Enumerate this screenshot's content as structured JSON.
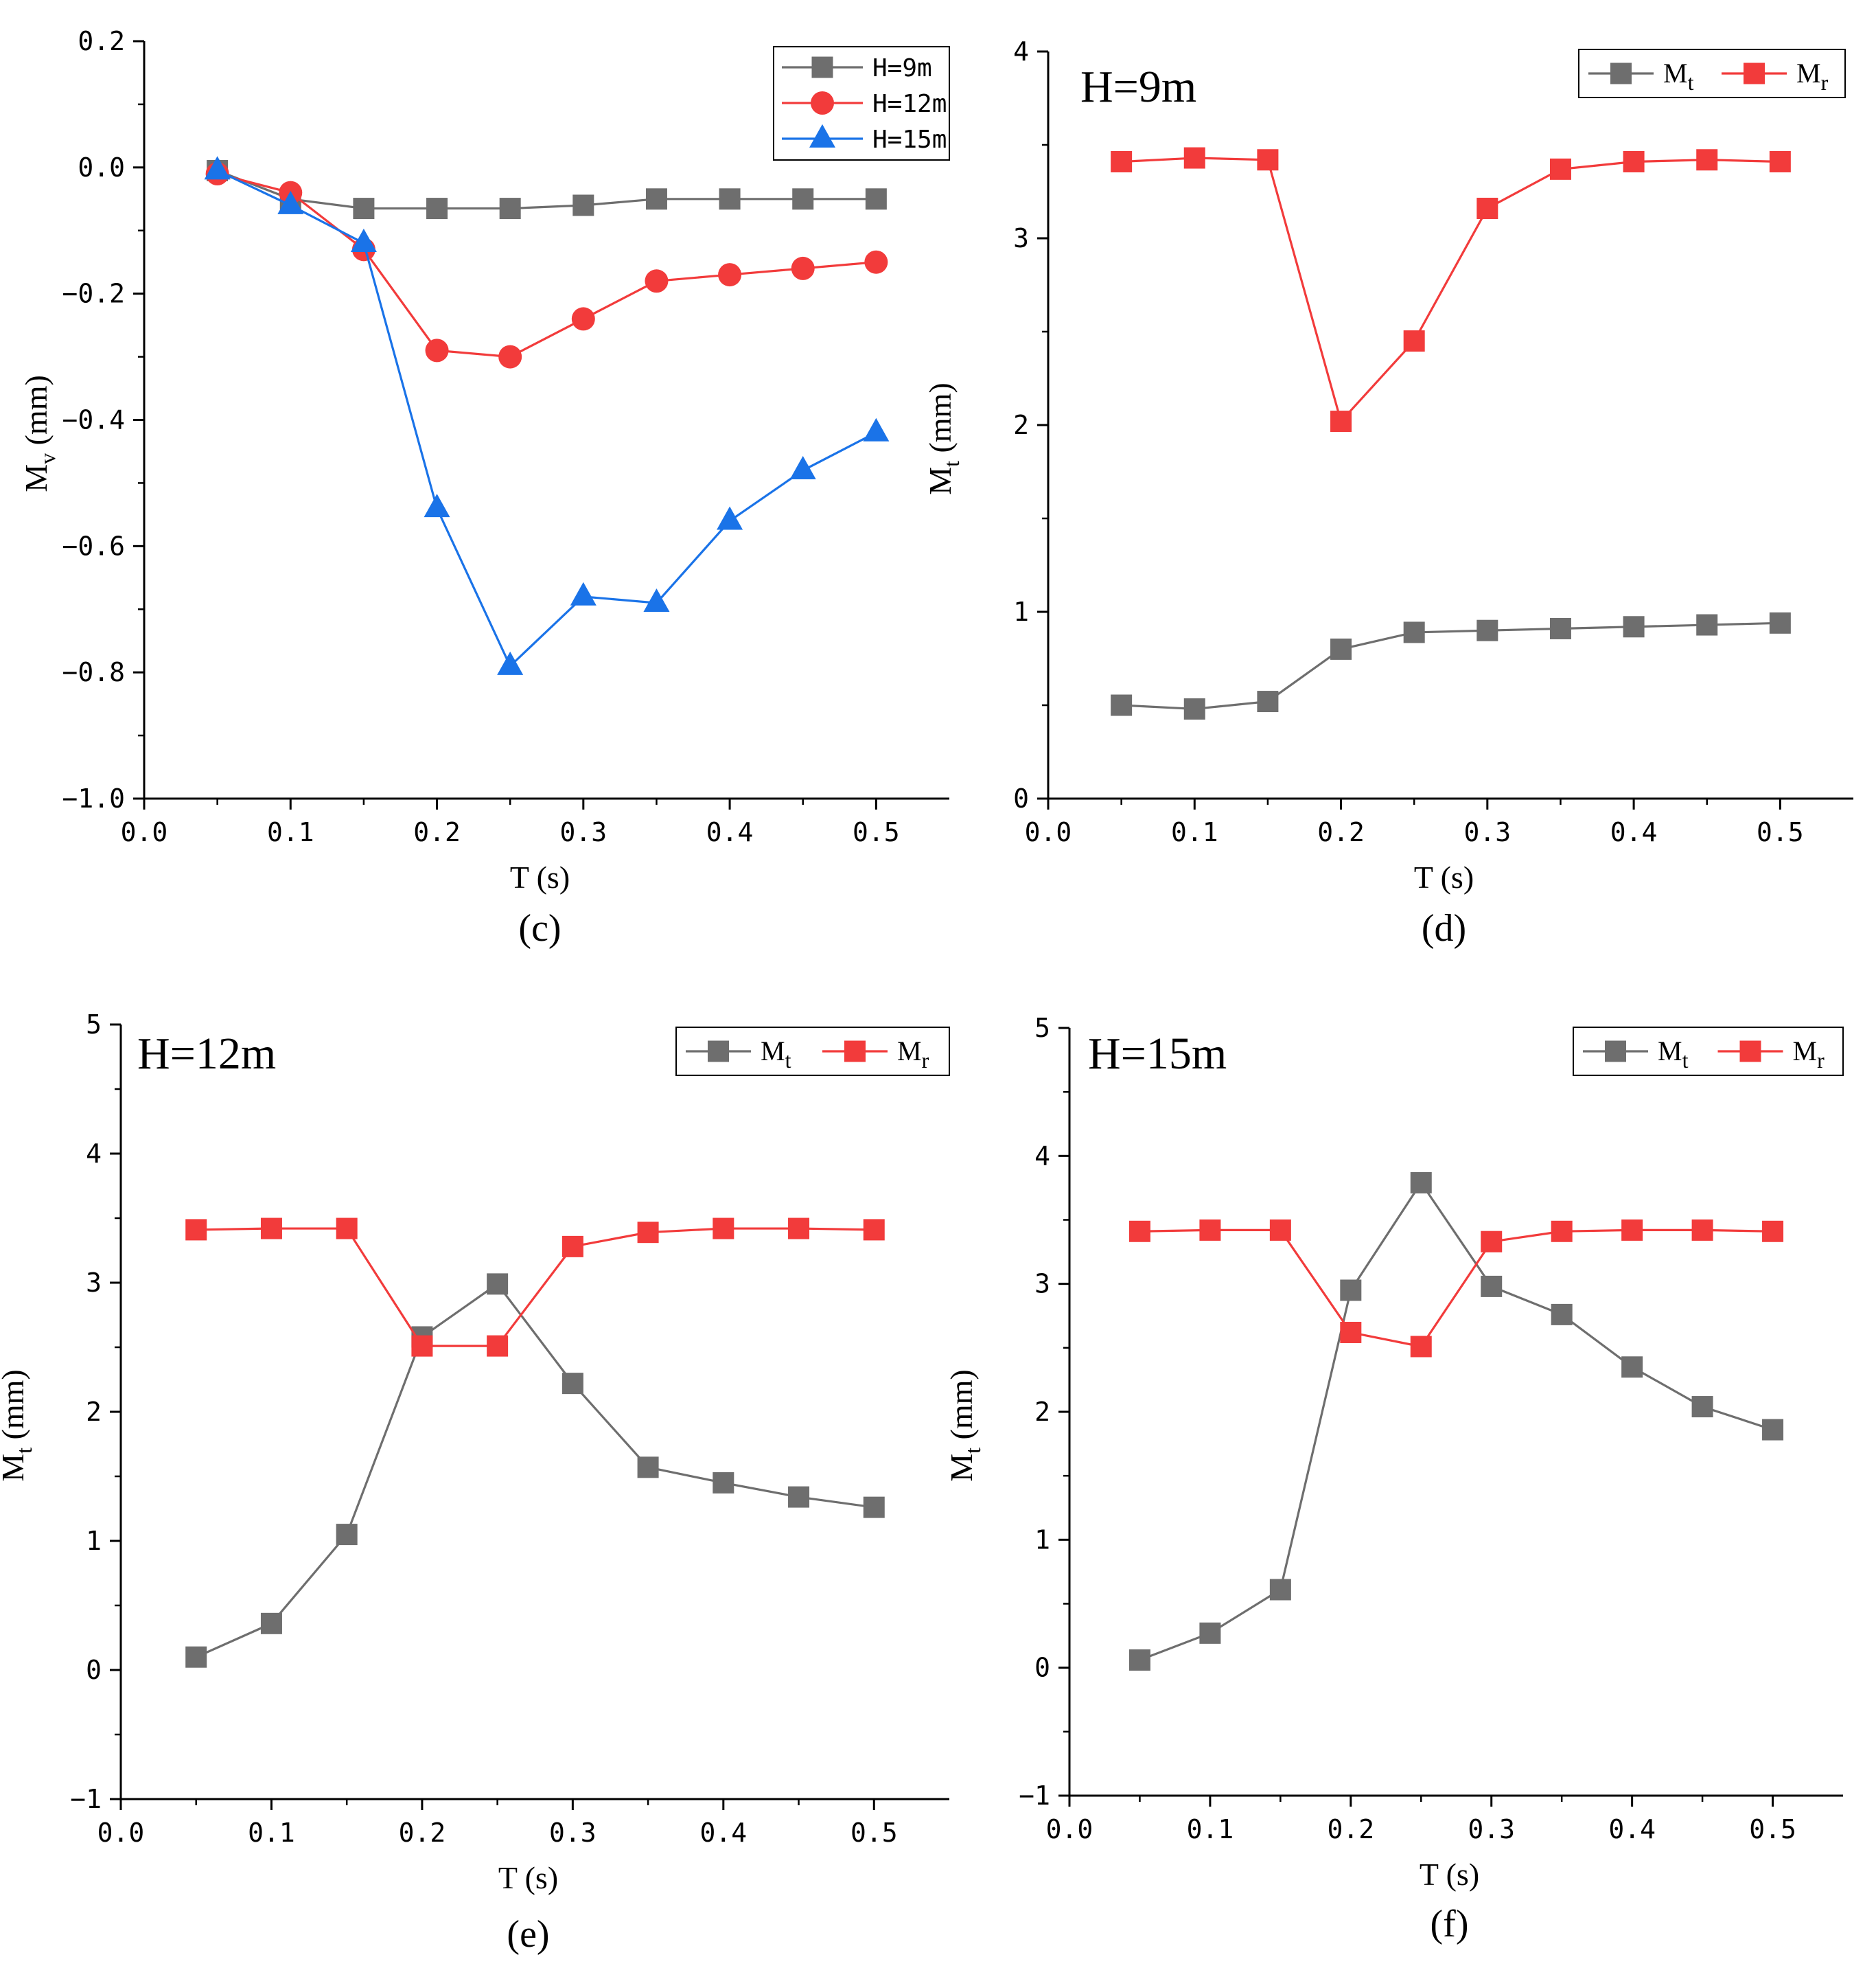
{
  "chart_data": [
    {
      "id": "c",
      "type": "line",
      "caption": "(c)",
      "xlabel": "T (s)",
      "ylabel": {
        "main": "M",
        "sub": "v",
        "unit": " (mm)"
      },
      "xlim": [
        0,
        0.55
      ],
      "ylim": [
        -1.0,
        0.2
      ],
      "xticks": [
        0.0,
        0.1,
        0.2,
        0.3,
        0.4,
        0.5
      ],
      "xtick_labels": [
        "0.0",
        "0.1",
        "0.2",
        "0.3",
        "0.4",
        "0.5"
      ],
      "yticks": [
        0.2,
        0.0,
        -0.2,
        -0.4,
        -0.6,
        -0.8,
        -1.0
      ],
      "ytick_labels": [
        "0.2",
        "0.0",
        "−0.2",
        "−0.4",
        "−0.6",
        "−0.8",
        "−1.0"
      ],
      "legend_position": "top-right",
      "x": [
        0.05,
        0.1,
        0.15,
        0.2,
        0.25,
        0.3,
        0.35,
        0.4,
        0.45,
        0.5
      ],
      "series": [
        {
          "name": "H=9m",
          "color": "#6e6e6e",
          "marker": "square",
          "values": [
            -0.005,
            -0.05,
            -0.065,
            -0.065,
            -0.065,
            -0.06,
            -0.05,
            -0.05,
            -0.05,
            -0.05
          ]
        },
        {
          "name": "H=12m",
          "color": "#f23b3b",
          "marker": "circle",
          "values": [
            -0.01,
            -0.04,
            -0.13,
            -0.29,
            -0.3,
            -0.24,
            -0.18,
            -0.17,
            -0.16,
            -0.15
          ]
        },
        {
          "name": "H=15m",
          "color": "#1a73e8",
          "marker": "triangle",
          "values": [
            -0.005,
            -0.06,
            -0.12,
            -0.54,
            -0.79,
            -0.68,
            -0.69,
            -0.56,
            -0.48,
            -0.42
          ]
        }
      ]
    },
    {
      "id": "d",
      "type": "line",
      "caption": "(d)",
      "annotation": "H=9m",
      "xlabel": "T (s)",
      "ylabel": {
        "main": "M",
        "sub": "t",
        "unit": " (mm)"
      },
      "xlim": [
        0,
        0.55
      ],
      "ylim": [
        0,
        4
      ],
      "xticks": [
        0.0,
        0.1,
        0.2,
        0.3,
        0.4,
        0.5
      ],
      "xtick_labels": [
        "0.0",
        "0.1",
        "0.2",
        "0.3",
        "0.4",
        "0.5"
      ],
      "yticks": [
        0,
        1,
        2,
        3,
        4
      ],
      "ytick_labels": [
        "0",
        "1",
        "2",
        "3",
        "4"
      ],
      "legend_position": "top-right",
      "x": [
        0.05,
        0.1,
        0.15,
        0.2,
        0.25,
        0.3,
        0.35,
        0.4,
        0.45,
        0.5
      ],
      "series": [
        {
          "name": "M",
          "sub": "t",
          "color": "#6e6e6e",
          "marker": "square",
          "values": [
            0.5,
            0.48,
            0.52,
            0.8,
            0.89,
            0.9,
            0.91,
            0.92,
            0.93,
            0.94
          ]
        },
        {
          "name": "M",
          "sub": "r",
          "color": "#f23b3b",
          "marker": "square",
          "values": [
            3.41,
            3.43,
            3.42,
            2.02,
            2.45,
            3.16,
            3.37,
            3.41,
            3.42,
            3.41
          ]
        }
      ]
    },
    {
      "id": "e",
      "type": "line",
      "caption": "(e)",
      "annotation": "H=12m",
      "xlabel": "T (s)",
      "ylabel": {
        "main": "M",
        "sub": "t",
        "unit": " (mm)"
      },
      "xlim": [
        0,
        0.55
      ],
      "ylim": [
        -1,
        5
      ],
      "xticks": [
        0.0,
        0.1,
        0.2,
        0.3,
        0.4,
        0.5
      ],
      "xtick_labels": [
        "0.0",
        "0.1",
        "0.2",
        "0.3",
        "0.4",
        "0.5"
      ],
      "yticks": [
        -1,
        0,
        1,
        2,
        3,
        4,
        5
      ],
      "ytick_labels": [
        "−1",
        "0",
        "1",
        "2",
        "3",
        "4",
        "5"
      ],
      "legend_position": "top-right",
      "x": [
        0.05,
        0.1,
        0.15,
        0.2,
        0.25,
        0.3,
        0.35,
        0.4,
        0.45,
        0.5
      ],
      "series": [
        {
          "name": "M",
          "sub": "t",
          "color": "#6e6e6e",
          "marker": "square",
          "values": [
            0.1,
            0.36,
            1.05,
            2.58,
            2.99,
            2.22,
            1.57,
            1.45,
            1.34,
            1.26
          ]
        },
        {
          "name": "M",
          "sub": "r",
          "color": "#f23b3b",
          "marker": "square",
          "values": [
            3.41,
            3.42,
            3.42,
            2.51,
            2.51,
            3.28,
            3.39,
            3.42,
            3.42,
            3.41
          ]
        }
      ]
    },
    {
      "id": "f",
      "type": "line",
      "caption": "(f)",
      "annotation": "H=15m",
      "xlabel": "T (s)",
      "ylabel": {
        "main": "M",
        "sub": "t",
        "unit": " (mm)"
      },
      "xlim": [
        0,
        0.55
      ],
      "ylim": [
        -1,
        5
      ],
      "xticks": [
        0.0,
        0.1,
        0.2,
        0.3,
        0.4,
        0.5
      ],
      "xtick_labels": [
        "0.0",
        "0.1",
        "0.2",
        "0.3",
        "0.4",
        "0.5"
      ],
      "yticks": [
        -1,
        0,
        1,
        2,
        3,
        4,
        5
      ],
      "ytick_labels": [
        "−1",
        "0",
        "1",
        "2",
        "3",
        "4",
        "5"
      ],
      "legend_position": "top-right",
      "x": [
        0.05,
        0.1,
        0.15,
        0.2,
        0.25,
        0.3,
        0.35,
        0.4,
        0.45,
        0.5
      ],
      "series": [
        {
          "name": "M",
          "sub": "t",
          "color": "#6e6e6e",
          "marker": "square",
          "values": [
            0.06,
            0.27,
            0.61,
            2.95,
            3.79,
            2.98,
            2.76,
            2.35,
            2.04,
            1.86
          ]
        },
        {
          "name": "M",
          "sub": "r",
          "color": "#f23b3b",
          "marker": "square",
          "values": [
            3.41,
            3.42,
            3.42,
            2.62,
            2.51,
            3.33,
            3.41,
            3.42,
            3.42,
            3.41
          ]
        }
      ]
    }
  ]
}
